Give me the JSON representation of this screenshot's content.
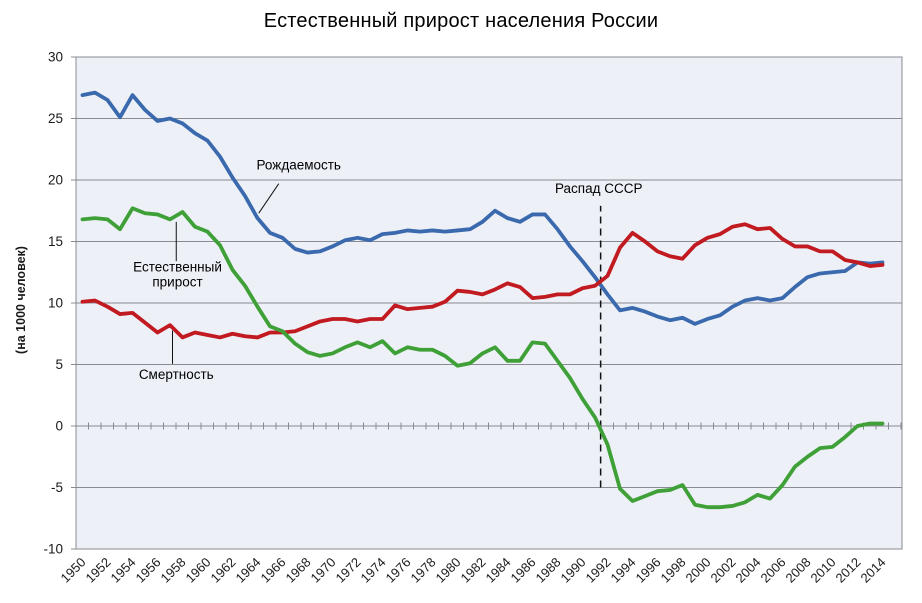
{
  "title": "Естественный прирост населения России",
  "chart_data": {
    "type": "line",
    "title": "Естественный прирост населения России",
    "xlabel": "",
    "ylabel": "(на 1000 человек)",
    "ylim": [
      -10,
      30
    ],
    "yticks": [
      30,
      25,
      20,
      15,
      10,
      5,
      0,
      -5,
      -10
    ],
    "xtick_labels": [
      "1950",
      "1952",
      "1954",
      "1956",
      "1958",
      "1960",
      "1962",
      "1964",
      "1966",
      "1968",
      "1970",
      "1972",
      "1974",
      "1976",
      "1978",
      "1980",
      "1982",
      "1984",
      "1986",
      "1988",
      "1990",
      "1992",
      "1994",
      "1996",
      "1998",
      "2000",
      "2002",
      "2004",
      "2006",
      "2008",
      "2010",
      "2012",
      "2014"
    ],
    "grid": true,
    "legend_position": "none (inline annotations)",
    "colors": {
      "plot_bg": "#edf1f7",
      "grid": "#888c92",
      "birth_rate": "#3b69ae",
      "death_rate": "#c11a20",
      "natural_increase": "#3fa037",
      "annotation": "#000000"
    },
    "x": [
      1950,
      1951,
      1952,
      1953,
      1954,
      1955,
      1956,
      1957,
      1958,
      1959,
      1960,
      1961,
      1962,
      1963,
      1964,
      1965,
      1966,
      1967,
      1968,
      1969,
      1970,
      1971,
      1972,
      1973,
      1974,
      1975,
      1976,
      1977,
      1978,
      1979,
      1980,
      1981,
      1982,
      1983,
      1984,
      1985,
      1986,
      1987,
      1988,
      1989,
      1990,
      1991,
      1992,
      1993,
      1994,
      1995,
      1996,
      1997,
      1998,
      1999,
      2000,
      2001,
      2002,
      2003,
      2004,
      2005,
      2006,
      2007,
      2008,
      2009,
      2010,
      2011,
      2012,
      2013,
      2014
    ],
    "series": [
      {
        "id": "birth-rate",
        "name": "Рождаемость",
        "color": "#3b69ae",
        "values": [
          26.9,
          27.1,
          26.5,
          25.1,
          26.9,
          25.7,
          24.8,
          25.0,
          24.6,
          23.8,
          23.2,
          21.9,
          20.2,
          18.7,
          16.9,
          15.7,
          15.3,
          14.4,
          14.1,
          14.2,
          14.6,
          15.1,
          15.3,
          15.1,
          15.6,
          15.7,
          15.9,
          15.8,
          15.9,
          15.8,
          15.9,
          16.0,
          16.6,
          17.5,
          16.9,
          16.6,
          17.2,
          17.2,
          16.0,
          14.6,
          13.4,
          12.1,
          10.7,
          9.4,
          9.6,
          9.3,
          8.9,
          8.6,
          8.8,
          8.3,
          8.7,
          9.0,
          9.7,
          10.2,
          10.4,
          10.2,
          10.4,
          11.3,
          12.1,
          12.4,
          12.5,
          12.6,
          13.3,
          13.2,
          13.3
        ]
      },
      {
        "id": "death-rate",
        "name": "Смертность",
        "color": "#c11a20",
        "values": [
          10.1,
          10.2,
          9.7,
          9.1,
          9.2,
          8.4,
          7.6,
          8.2,
          7.2,
          7.6,
          7.4,
          7.2,
          7.5,
          7.3,
          7.2,
          7.6,
          7.6,
          7.7,
          8.1,
          8.5,
          8.7,
          8.7,
          8.5,
          8.7,
          8.7,
          9.8,
          9.5,
          9.6,
          9.7,
          10.1,
          11.0,
          10.9,
          10.7,
          11.1,
          11.6,
          11.3,
          10.4,
          10.5,
          10.7,
          10.7,
          11.2,
          11.4,
          12.2,
          14.5,
          15.7,
          15.0,
          14.2,
          13.8,
          13.6,
          14.7,
          15.3,
          15.6,
          16.2,
          16.4,
          16.0,
          16.1,
          15.2,
          14.6,
          14.6,
          14.2,
          14.2,
          13.5,
          13.3,
          13.0,
          13.1
        ]
      },
      {
        "id": "natural-increase",
        "name": "Естественный прирост",
        "color": "#3fa037",
        "values": [
          16.8,
          16.9,
          16.8,
          16.0,
          17.7,
          17.3,
          17.2,
          16.8,
          17.4,
          16.2,
          15.8,
          14.7,
          12.7,
          11.4,
          9.7,
          8.1,
          7.7,
          6.7,
          6.0,
          5.7,
          5.9,
          6.4,
          6.8,
          6.4,
          6.9,
          5.9,
          6.4,
          6.2,
          6.2,
          5.7,
          4.9,
          5.1,
          5.9,
          6.4,
          5.3,
          5.3,
          6.8,
          6.7,
          5.3,
          3.9,
          2.2,
          0.7,
          -1.5,
          -5.1,
          -6.1,
          -5.7,
          -5.3,
          -5.2,
          -4.8,
          -6.4,
          -6.6,
          -6.6,
          -6.5,
          -6.2,
          -5.6,
          -5.9,
          -4.8,
          -3.3,
          -2.5,
          -1.8,
          -1.7,
          -0.9,
          0.0,
          0.2,
          0.2
        ]
      }
    ],
    "annotations": [
      {
        "id": "birth-rate",
        "lines": [
          "Рождаемость"
        ],
        "x": 1967.3,
        "y": 21.2,
        "pointer": [
          [
            1965.7,
            19.7
          ],
          [
            1964.1,
            17.3
          ]
        ]
      },
      {
        "id": "natural-increase",
        "lines": [
          "Естественный",
          "прирост"
        ],
        "x": 1957.6,
        "y": 12.3,
        "pointer": [
          [
            1957.5,
            13.4
          ],
          [
            1957.5,
            16.6
          ]
        ]
      },
      {
        "id": "death-rate",
        "lines": [
          "Смертность"
        ],
        "x": 1957.5,
        "y": 4.2,
        "pointer": [
          [
            1957.2,
            5.05
          ],
          [
            1957.2,
            7.75
          ]
        ]
      },
      {
        "id": "ussr-collapse",
        "lines": [
          "Распад СССР"
        ],
        "x": 1991.3,
        "y": 19.3,
        "vline": {
          "x": 1991.45,
          "from": -5.0,
          "to": 17.9
        }
      }
    ]
  }
}
